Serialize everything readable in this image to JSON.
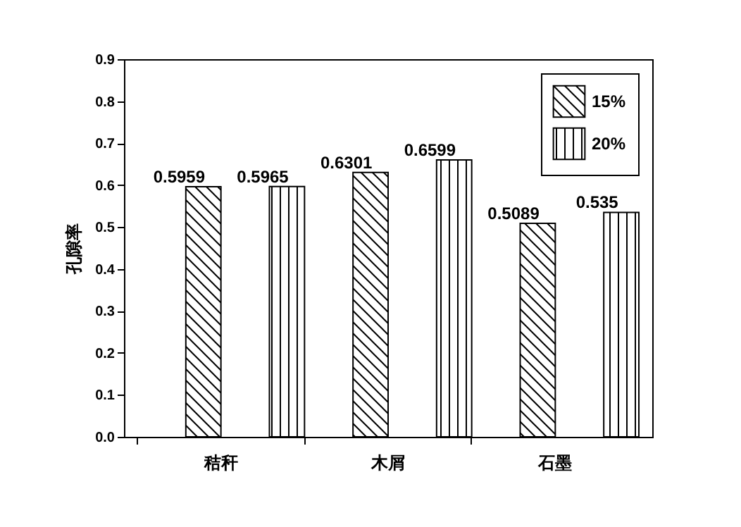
{
  "chart_data": {
    "type": "bar",
    "ylabel": "孔隙率",
    "categories": [
      "秸秆",
      "木屑",
      "石墨"
    ],
    "series": [
      {
        "name": "15%",
        "color": "#000000",
        "values": [
          0.5959,
          0.6301,
          0.5089
        ]
      },
      {
        "name": "20%",
        "color": "#000000",
        "values": [
          0.5965,
          0.6599,
          0.535
        ]
      }
    ],
    "ylim": [
      0,
      0.9
    ],
    "yticks": [
      {
        "value": 0,
        "label": "0.0"
      },
      0.1,
      0.2,
      0.3,
      0.4,
      0.5,
      0.6,
      0.7,
      0.8,
      0.9
    ],
    "data_labels": true,
    "legend": "top right",
    "grid": false
  }
}
